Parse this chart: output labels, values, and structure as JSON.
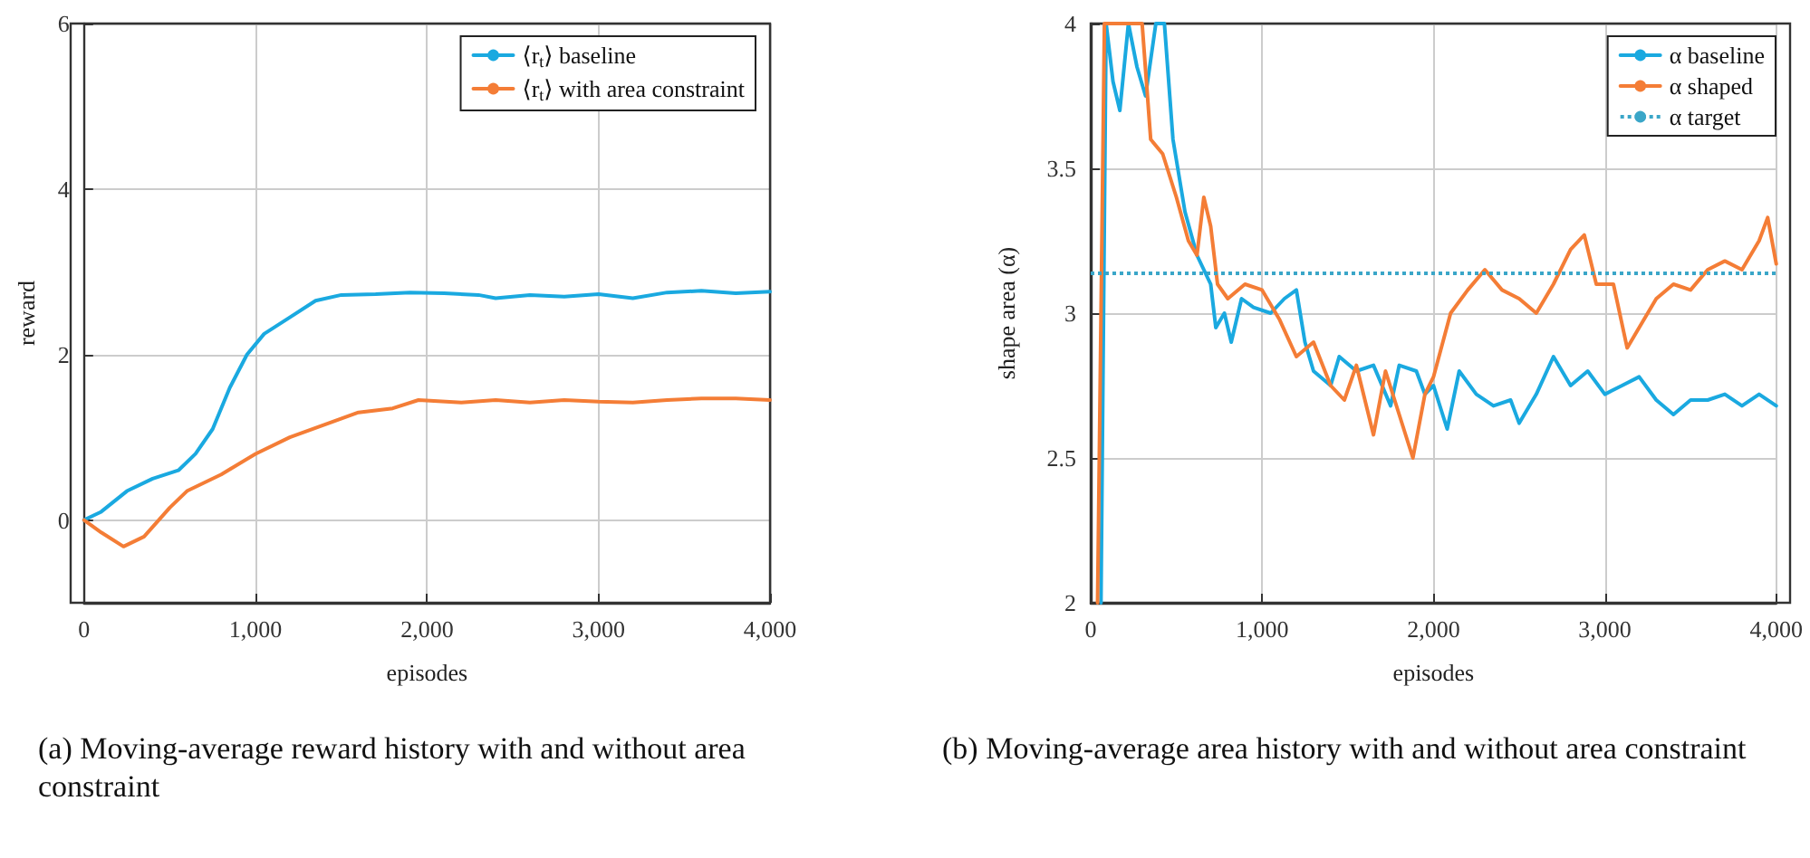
{
  "chart_data": [
    {
      "type": "line",
      "title": "(a) Moving-average reward history with and without area constraint",
      "xlabel": "episodes",
      "ylabel": "reward",
      "xlim": [
        0,
        4000
      ],
      "xticks": [
        {
          "value": 0,
          "label": "0"
        },
        {
          "value": 1000,
          "label": "1,000"
        },
        {
          "value": 2000,
          "label": "2,000"
        },
        {
          "value": 3000,
          "label": "3,000"
        },
        {
          "value": 4000,
          "label": "4,000"
        }
      ],
      "ylim": [
        -1,
        6
      ],
      "yticks": [
        0,
        2,
        4,
        6
      ],
      "grid": true,
      "legend": "top right",
      "marker": "none",
      "line_style": "solid",
      "series": [
        {
          "name": "⟨r$_{t}$⟩ baseline",
          "color": "#1aa9e0",
          "x": [
            0,
            100,
            250,
            400,
            550,
            650,
            750,
            850,
            950,
            1050,
            1200,
            1350,
            1500,
            1700,
            1900,
            2100,
            2300,
            2400,
            2600,
            2800,
            3000,
            3200,
            3400,
            3600,
            3800,
            4000
          ],
          "values": [
            0,
            0.1,
            0.35,
            0.5,
            0.6,
            0.8,
            1.1,
            1.6,
            2.0,
            2.25,
            2.45,
            2.65,
            2.72,
            2.73,
            2.75,
            2.74,
            2.72,
            2.68,
            2.72,
            2.7,
            2.73,
            2.68,
            2.75,
            2.77,
            2.74,
            2.76
          ]
        },
        {
          "name": "⟨r$_{t}$⟩ with area constraint",
          "color": "#f47d36",
          "x": [
            0,
            100,
            230,
            350,
            500,
            600,
            800,
            1000,
            1200,
            1400,
            1600,
            1800,
            1950,
            2200,
            2400,
            2600,
            2800,
            3000,
            3200,
            3400,
            3600,
            3800,
            4000
          ],
          "values": [
            0,
            -0.15,
            -0.32,
            -0.2,
            0.15,
            0.35,
            0.55,
            0.8,
            1.0,
            1.15,
            1.3,
            1.35,
            1.45,
            1.42,
            1.45,
            1.42,
            1.45,
            1.43,
            1.42,
            1.45,
            1.47,
            1.47,
            1.45
          ]
        }
      ]
    },
    {
      "type": "line",
      "title": "(b) Moving-average area history with and without area constraint",
      "xlabel": "episodes",
      "ylabel": "shape area (α)",
      "xlim": [
        0,
        4000
      ],
      "xticks": [
        {
          "value": 0,
          "label": "0"
        },
        {
          "value": 1000,
          "label": "1,000"
        },
        {
          "value": 2000,
          "label": "2,000"
        },
        {
          "value": 3000,
          "label": "3,000"
        },
        {
          "value": 4000,
          "label": "4,000"
        }
      ],
      "ylim": [
        2,
        4
      ],
      "yticks": [
        {
          "value": 2,
          "label": "2"
        },
        {
          "value": 2.5,
          "label": "2.5"
        },
        {
          "value": 3,
          "label": "3"
        },
        {
          "value": 3.5,
          "label": "3.5"
        },
        {
          "value": 4,
          "label": "4"
        }
      ],
      "grid": true,
      "legend": "top right",
      "marker": "none",
      "line_style": "solid",
      "ref_lines": [
        {
          "axis": "y",
          "value": 3.14,
          "label": "α target",
          "color": "#3aa6c8",
          "line_style": "dotted"
        }
      ],
      "series": [
        {
          "name": "α baseline",
          "color": "#1aa9e0",
          "x": [
            60,
            90,
            130,
            170,
            220,
            270,
            320,
            380,
            430,
            480,
            550,
            620,
            700,
            730,
            780,
            820,
            880,
            950,
            1050,
            1130,
            1200,
            1250,
            1300,
            1400,
            1450,
            1550,
            1650,
            1750,
            1800,
            1900,
            1950,
            2000,
            2080,
            2150,
            2250,
            2350,
            2450,
            2500,
            2600,
            2700,
            2800,
            2900,
            3000,
            3100,
            3200,
            3300,
            3400,
            3500,
            3600,
            3700,
            3800,
            3900,
            4000
          ],
          "values": [
            2.0,
            4.0,
            3.8,
            3.7,
            4.0,
            3.85,
            3.75,
            4.0,
            4.0,
            3.6,
            3.35,
            3.2,
            3.1,
            2.95,
            3.0,
            2.9,
            3.05,
            3.02,
            3.0,
            3.05,
            3.08,
            2.9,
            2.8,
            2.75,
            2.85,
            2.8,
            2.82,
            2.68,
            2.82,
            2.8,
            2.72,
            2.75,
            2.6,
            2.8,
            2.72,
            2.68,
            2.7,
            2.62,
            2.72,
            2.85,
            2.75,
            2.8,
            2.72,
            2.75,
            2.78,
            2.7,
            2.65,
            2.7,
            2.7,
            2.72,
            2.68,
            2.72,
            2.68
          ]
        },
        {
          "name": "α shaped",
          "color": "#f47d36",
          "x": [
            40,
            80,
            200,
            300,
            350,
            420,
            500,
            570,
            620,
            660,
            700,
            740,
            800,
            900,
            1000,
            1100,
            1200,
            1300,
            1400,
            1480,
            1550,
            1650,
            1720,
            1800,
            1880,
            1950,
            2000,
            2100,
            2200,
            2300,
            2400,
            2500,
            2600,
            2700,
            2800,
            2880,
            2950,
            3050,
            3130,
            3200,
            3300,
            3400,
            3500,
            3600,
            3700,
            3800,
            3900,
            3950,
            4000
          ],
          "values": [
            2.0,
            4.0,
            4.0,
            4.0,
            3.6,
            3.55,
            3.4,
            3.25,
            3.2,
            3.4,
            3.3,
            3.1,
            3.05,
            3.1,
            3.08,
            2.98,
            2.85,
            2.9,
            2.75,
            2.7,
            2.82,
            2.58,
            2.8,
            2.65,
            2.5,
            2.72,
            2.78,
            3.0,
            3.08,
            3.15,
            3.08,
            3.05,
            3.0,
            3.1,
            3.22,
            3.27,
            3.1,
            3.1,
            2.88,
            2.95,
            3.05,
            3.1,
            3.08,
            3.15,
            3.18,
            3.15,
            3.25,
            3.33,
            3.17
          ]
        }
      ]
    }
  ]
}
